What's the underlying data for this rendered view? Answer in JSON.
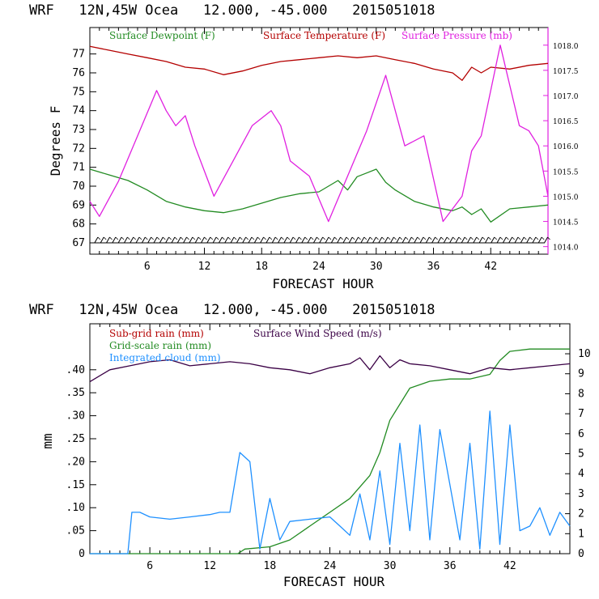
{
  "chart_data": [
    {
      "type": "line",
      "title": "WRF   12N,45W Ocea   12.000, -45.000   2015051018",
      "xlabel": "FORECAST HOUR",
      "ylabel": "Degrees F",
      "xlim": [
        0,
        48
      ],
      "ylim": [
        66.4,
        78.4
      ],
      "y2lim": [
        1013.85,
        1018.35
      ],
      "xticks": [
        "6",
        "12",
        "18",
        "24",
        "30",
        "36",
        "42"
      ],
      "yticks": [
        "67",
        "68",
        "69",
        "70",
        "71",
        "72",
        "73",
        "74",
        "75",
        "76",
        "77"
      ],
      "y2ticks": [
        "1014.0",
        "1014.5",
        "1015.0",
        "1015.5",
        "1016.0",
        "1016.5",
        "1017.0",
        "1017.5",
        "1018.0"
      ],
      "grid": false,
      "legend": "top",
      "wind_barbs": true,
      "series": [
        {
          "name": "Surface Temperature (F)",
          "color": "#b40000",
          "axis": "left",
          "x": [
            0,
            2,
            4,
            6,
            8,
            10,
            12,
            14,
            16,
            18,
            20,
            22,
            24,
            26,
            28,
            30,
            32,
            34,
            36,
            38,
            39,
            40,
            41,
            42,
            44,
            46,
            48
          ],
          "y": [
            77.4,
            77.2,
            77.0,
            76.8,
            76.6,
            76.3,
            76.2,
            75.9,
            76.1,
            76.4,
            76.6,
            76.7,
            76.8,
            76.9,
            76.8,
            76.9,
            76.7,
            76.5,
            76.2,
            76.0,
            75.6,
            76.3,
            76.0,
            76.3,
            76.2,
            76.4,
            76.5
          ]
        },
        {
          "name": "Surface Dewpoint (F)",
          "color": "#228b22",
          "axis": "left",
          "x": [
            0,
            2,
            4,
            6,
            8,
            10,
            12,
            14,
            16,
            18,
            20,
            22,
            24,
            25,
            26,
            27,
            28,
            29,
            30,
            31,
            32,
            34,
            36,
            38,
            39,
            40,
            41,
            42,
            44,
            46,
            48
          ],
          "y": [
            70.9,
            70.6,
            70.3,
            69.8,
            69.2,
            68.9,
            68.7,
            68.6,
            68.8,
            69.1,
            69.4,
            69.6,
            69.7,
            70.0,
            70.3,
            69.8,
            70.5,
            70.7,
            70.9,
            70.2,
            69.8,
            69.2,
            68.9,
            68.7,
            68.9,
            68.5,
            68.8,
            68.1,
            68.8,
            68.9,
            69.0
          ]
        },
        {
          "name": "Surface Pressure (mb)",
          "color": "#e020e0",
          "axis": "right",
          "x": [
            0,
            1,
            3,
            5,
            7,
            8,
            9,
            10,
            11,
            13,
            15,
            17,
            19,
            20,
            21,
            23,
            25,
            27,
            29,
            31,
            33,
            35,
            37,
            39,
            40,
            41,
            43,
            45,
            46,
            47,
            48
          ],
          "y": [
            1014.9,
            1014.6,
            1015.3,
            1016.2,
            1017.1,
            1016.7,
            1016.4,
            1016.6,
            1016.0,
            1015.0,
            1015.7,
            1016.4,
            1016.7,
            1016.4,
            1015.7,
            1015.4,
            1014.5,
            1015.4,
            1016.3,
            1017.4,
            1016.0,
            1016.2,
            1014.5,
            1015.0,
            1015.9,
            1016.2,
            1018.0,
            1016.4,
            1016.3,
            1016.0,
            1015.0
          ]
        }
      ]
    },
    {
      "type": "line",
      "title": "WRF   12N,45W Ocea   12.000, -45.000   2015051018",
      "xlabel": "FORECAST HOUR",
      "ylabel": "mm",
      "xlim": [
        0,
        48
      ],
      "ylim": [
        0,
        0.5
      ],
      "y2lim": [
        0,
        11.5
      ],
      "xticks": [
        "6",
        "12",
        "18",
        "24",
        "30",
        "36",
        "42"
      ],
      "yticks": [
        "0",
        ".05",
        ".10",
        ".15",
        ".20",
        ".25",
        ".30",
        ".35",
        ".40"
      ],
      "y2ticks": [
        "0",
        "1",
        "2",
        "3",
        "4",
        "5",
        "6",
        "7",
        "8",
        "9",
        "10"
      ],
      "grid": false,
      "legend": "top-left",
      "series": [
        {
          "name": "Sub-grid rain (mm)",
          "color": "#b40000",
          "axis": "left",
          "x": [],
          "y": []
        },
        {
          "name": "Grid-scale rain (mm)",
          "color": "#228b22",
          "axis": "left",
          "x": [
            0,
            14.8,
            15.5,
            18,
            20,
            22,
            24,
            26,
            28,
            29,
            30,
            32,
            34,
            36,
            38,
            40,
            41,
            42,
            44,
            46,
            48
          ],
          "y": [
            0,
            0,
            0.01,
            0.015,
            0.03,
            0.06,
            0.09,
            0.12,
            0.17,
            0.22,
            0.29,
            0.36,
            0.375,
            0.38,
            0.38,
            0.39,
            0.42,
            0.44,
            0.445,
            0.445,
            0.445
          ]
        },
        {
          "name": "Integrated cloud (mm)",
          "color": "#1e90ff",
          "axis": "left",
          "x": [
            0,
            3.8,
            4.2,
            5,
            6,
            8,
            10,
            12,
            13,
            14,
            15,
            16,
            17,
            18,
            19,
            20,
            22,
            24,
            25,
            26,
            27,
            28,
            29,
            30,
            31,
            32,
            33,
            34,
            35,
            36,
            37,
            38,
            39,
            40,
            41,
            42,
            43,
            44,
            45,
            46,
            47,
            48
          ],
          "y": [
            0,
            0,
            0.09,
            0.09,
            0.08,
            0.075,
            0.08,
            0.085,
            0.09,
            0.09,
            0.22,
            0.2,
            0.01,
            0.12,
            0.03,
            0.07,
            0.075,
            0.08,
            0.06,
            0.04,
            0.13,
            0.03,
            0.18,
            0.02,
            0.24,
            0.05,
            0.28,
            0.03,
            0.27,
            0.15,
            0.03,
            0.24,
            0.01,
            0.31,
            0.02,
            0.28,
            0.05,
            0.06,
            0.1,
            0.04,
            0.09,
            0.06
          ]
        },
        {
          "name": "Surface Wind Speed (m/s)",
          "color": "#3a0045",
          "axis": "right",
          "x": [
            0,
            2,
            4,
            6,
            8,
            10,
            12,
            14,
            16,
            18,
            20,
            22,
            24,
            26,
            27,
            28,
            29,
            30,
            31,
            32,
            34,
            36,
            38,
            40,
            42,
            44,
            46,
            48
          ],
          "y": [
            8.6,
            9.2,
            9.4,
            9.6,
            9.7,
            9.4,
            9.5,
            9.6,
            9.5,
            9.3,
            9.2,
            9.0,
            9.3,
            9.5,
            9.8,
            9.2,
            9.9,
            9.3,
            9.7,
            9.5,
            9.4,
            9.2,
            9.0,
            9.3,
            9.2,
            9.3,
            9.4,
            9.5
          ]
        }
      ]
    }
  ]
}
